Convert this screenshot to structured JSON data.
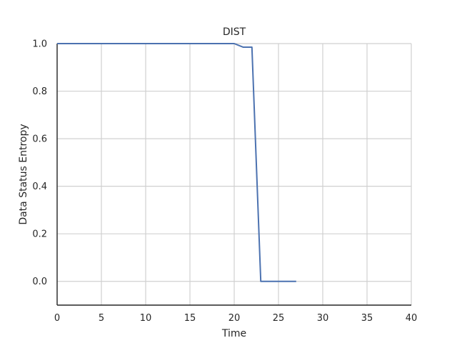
{
  "colors": {
    "series": "#4c72b0",
    "grid": "#d0d0d0",
    "axis": "#262626"
  },
  "chart_data": {
    "type": "line",
    "title": "DIST",
    "xlabel": "Time",
    "ylabel": "Data Status Entropy",
    "xlim": [
      0,
      40
    ],
    "ylim": [
      -0.1,
      1.0
    ],
    "xticks": [
      0,
      5,
      10,
      15,
      20,
      25,
      30,
      35,
      40
    ],
    "yticks": [
      0.0,
      0.2,
      0.4,
      0.6,
      0.8,
      1.0
    ],
    "xtick_labels": [
      "0",
      "5",
      "10",
      "15",
      "20",
      "25",
      "30",
      "35",
      "40"
    ],
    "ytick_labels": [
      "0.0",
      "0.2",
      "0.4",
      "0.6",
      "0.8",
      "1.0"
    ],
    "grid": true,
    "series": [
      {
        "x": [
          0,
          1,
          2,
          3,
          4,
          5,
          6,
          7,
          8,
          9,
          10,
          11,
          12,
          13,
          14,
          15,
          16,
          17,
          18,
          19,
          20,
          21,
          22,
          23,
          24,
          25,
          26,
          27
        ],
        "y": [
          1.0,
          1.0,
          1.0,
          1.0,
          1.0,
          1.0,
          1.0,
          1.0,
          1.0,
          1.0,
          1.0,
          1.0,
          1.0,
          1.0,
          1.0,
          1.0,
          1.0,
          1.0,
          1.0,
          1.0,
          1.0,
          0.985,
          0.985,
          0.0,
          0.0,
          0.0,
          0.0,
          0.0
        ]
      }
    ]
  }
}
